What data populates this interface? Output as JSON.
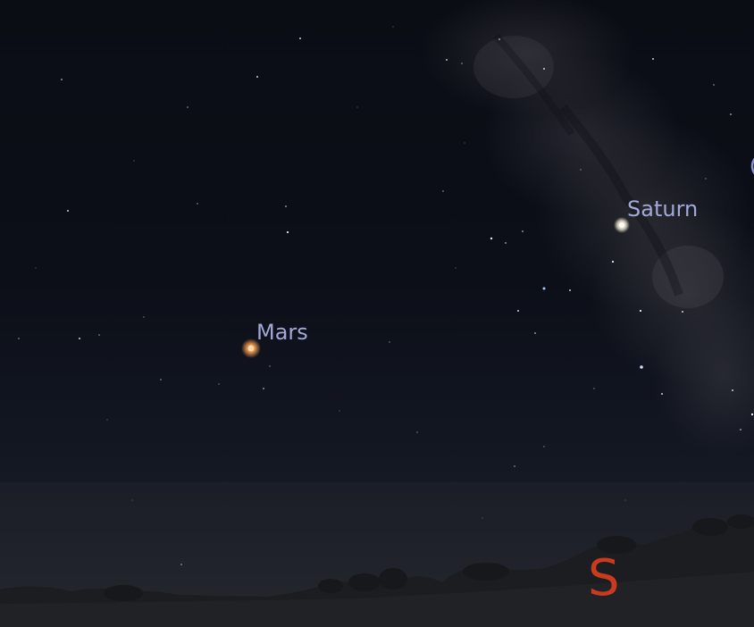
{
  "planets": {
    "mars": {
      "name": "Mars",
      "color": "#e6924a"
    },
    "saturn": {
      "name": "Saturn",
      "color": "#fff6da"
    }
  },
  "compass": {
    "south": "S",
    "color": "#c93a1f"
  },
  "colors": {
    "sky": "#0b0d15",
    "label": "#a2a9d6",
    "ground": "#1e2126"
  }
}
